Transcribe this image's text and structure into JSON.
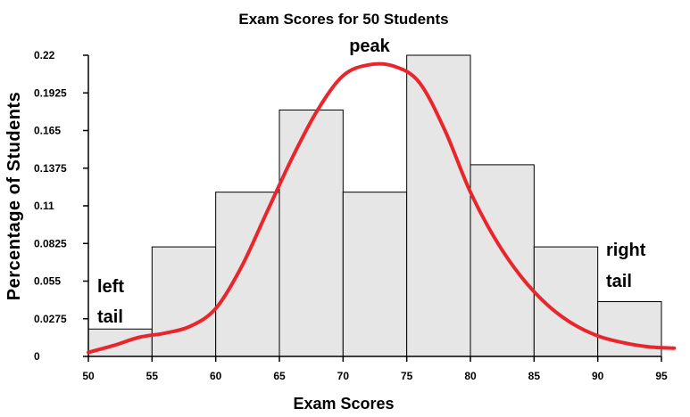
{
  "chart_data": {
    "type": "bar",
    "title": "Exam Scores for 50 Students",
    "xlabel": "Exam Scores",
    "ylabel": "Percentage of Students",
    "bins": [
      {
        "start": 50,
        "end": 55,
        "value": 0.02
      },
      {
        "start": 55,
        "end": 60,
        "value": 0.08
      },
      {
        "start": 60,
        "end": 65,
        "value": 0.12
      },
      {
        "start": 65,
        "end": 70,
        "value": 0.18
      },
      {
        "start": 70,
        "end": 75,
        "value": 0.12
      },
      {
        "start": 75,
        "end": 80,
        "value": 0.22
      },
      {
        "start": 80,
        "end": 85,
        "value": 0.14
      },
      {
        "start": 85,
        "end": 90,
        "value": 0.08
      },
      {
        "start": 90,
        "end": 95,
        "value": 0.04
      }
    ],
    "xlim": [
      50,
      95
    ],
    "ylim": [
      0,
      0.22
    ],
    "x_ticks": [
      "50",
      "55",
      "60",
      "65",
      "70",
      "75",
      "80",
      "85",
      "90",
      "95"
    ],
    "y_ticks": [
      "0",
      "0.0275",
      "0.055",
      "0.0825",
      "0.11",
      "0.1375",
      "0.165",
      "0.1925",
      "0.22"
    ],
    "curve": {
      "color": "#e8262b",
      "points": [
        [
          50,
          0.003
        ],
        [
          52,
          0.008
        ],
        [
          54,
          0.014
        ],
        [
          56,
          0.017
        ],
        [
          58,
          0.022
        ],
        [
          60,
          0.035
        ],
        [
          62,
          0.065
        ],
        [
          64,
          0.105
        ],
        [
          66,
          0.145
        ],
        [
          68,
          0.18
        ],
        [
          70,
          0.205
        ],
        [
          72,
          0.213
        ],
        [
          74,
          0.212
        ],
        [
          76,
          0.2
        ],
        [
          78,
          0.165
        ],
        [
          80,
          0.12
        ],
        [
          82,
          0.085
        ],
        [
          84,
          0.058
        ],
        [
          86,
          0.038
        ],
        [
          88,
          0.024
        ],
        [
          90,
          0.015
        ],
        [
          92,
          0.01
        ],
        [
          94,
          0.007
        ],
        [
          96,
          0.006
        ]
      ]
    },
    "annotations": {
      "peak": "peak",
      "left_tail_line1": "left",
      "left_tail_line2": "tail",
      "right_tail_line1": "right",
      "right_tail_line2": "tail"
    }
  }
}
